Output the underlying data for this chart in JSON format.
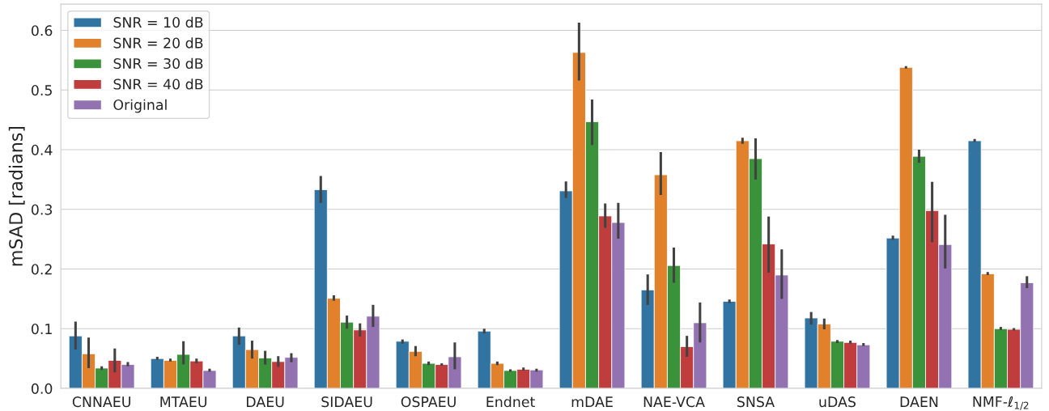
{
  "chart_data": {
    "type": "bar",
    "ylabel": "mSAD [radians]",
    "categories": [
      "CNNAEU",
      "MTAEU",
      "DAEU",
      "SIDAEU",
      "OSPAEU",
      "Endnet",
      "mDAE",
      "NAE-VCA",
      "SNSA",
      "uDAS",
      "DAEN",
      "NMF-ℓ$_{1/2}$"
    ],
    "series": [
      {
        "name": "SNR = 10 dB",
        "color": "#3274a1",
        "values": [
          0.088,
          0.05,
          0.088,
          0.333,
          0.079,
          0.096,
          0.331,
          0.165,
          0.146,
          0.118,
          0.252,
          0.415
        ],
        "errors": [
          [
            0.065,
            0.112
          ],
          [
            0.048,
            0.053
          ],
          [
            0.073,
            0.102
          ],
          [
            0.311,
            0.356
          ],
          [
            0.075,
            0.082
          ],
          [
            0.092,
            0.1
          ],
          [
            0.319,
            0.347
          ],
          [
            0.14,
            0.191
          ],
          [
            0.143,
            0.149
          ],
          [
            0.107,
            0.128
          ],
          [
            0.249,
            0.256
          ],
          [
            0.413,
            0.418
          ]
        ]
      },
      {
        "name": "SNR = 20 dB",
        "color": "#e1812c",
        "values": [
          0.058,
          0.047,
          0.065,
          0.151,
          0.062,
          0.042,
          0.563,
          0.358,
          0.415,
          0.108,
          0.538,
          0.192
        ],
        "errors": [
          [
            0.034,
            0.085
          ],
          [
            0.045,
            0.05
          ],
          [
            0.05,
            0.08
          ],
          [
            0.147,
            0.156
          ],
          [
            0.054,
            0.071
          ],
          [
            0.039,
            0.045
          ],
          [
            0.516,
            0.613
          ],
          [
            0.324,
            0.396
          ],
          [
            0.41,
            0.42
          ],
          [
            0.099,
            0.117
          ],
          [
            0.536,
            0.54
          ],
          [
            0.19,
            0.195
          ]
        ]
      },
      {
        "name": "SNR = 30 dB",
        "color": "#3a923a",
        "values": [
          0.034,
          0.057,
          0.051,
          0.111,
          0.042,
          0.03,
          0.447,
          0.206,
          0.385,
          0.079,
          0.389,
          0.1
        ],
        "errors": [
          [
            0.031,
            0.037
          ],
          [
            0.04,
            0.079
          ],
          [
            0.04,
            0.063
          ],
          [
            0.1,
            0.122
          ],
          [
            0.039,
            0.045
          ],
          [
            0.028,
            0.032
          ],
          [
            0.408,
            0.484
          ],
          [
            0.177,
            0.236
          ],
          [
            0.35,
            0.419
          ],
          [
            0.076,
            0.081
          ],
          [
            0.378,
            0.4
          ],
          [
            0.098,
            0.103
          ]
        ]
      },
      {
        "name": "SNR = 40 dB",
        "color": "#c03d3e",
        "values": [
          0.047,
          0.046,
          0.045,
          0.098,
          0.04,
          0.032,
          0.289,
          0.07,
          0.242,
          0.077,
          0.298,
          0.099
        ],
        "errors": [
          [
            0.027,
            0.067
          ],
          [
            0.042,
            0.05
          ],
          [
            0.036,
            0.054
          ],
          [
            0.087,
            0.109
          ],
          [
            0.038,
            0.042
          ],
          [
            0.03,
            0.035
          ],
          [
            0.269,
            0.31
          ],
          [
            0.053,
            0.088
          ],
          [
            0.194,
            0.288
          ],
          [
            0.075,
            0.08
          ],
          [
            0.245,
            0.346
          ],
          [
            0.097,
            0.101
          ]
        ]
      },
      {
        "name": "Original",
        "color": "#9372b2",
        "values": [
          0.04,
          0.03,
          0.052,
          0.121,
          0.053,
          0.031,
          0.278,
          0.11,
          0.19,
          0.073,
          0.241,
          0.177
        ],
        "errors": [
          [
            0.037,
            0.044
          ],
          [
            0.028,
            0.033
          ],
          [
            0.044,
            0.059
          ],
          [
            0.103,
            0.14
          ],
          [
            0.032,
            0.077
          ],
          [
            0.028,
            0.033
          ],
          [
            0.251,
            0.311
          ],
          [
            0.077,
            0.144
          ],
          [
            0.15,
            0.233
          ],
          [
            0.071,
            0.076
          ],
          [
            0.201,
            0.291
          ],
          [
            0.168,
            0.188
          ]
        ]
      }
    ],
    "ylim": [
      0,
      0.644
    ],
    "yticks": [
      {
        "value": 0,
        "label": "0.0"
      },
      0.1,
      0.2,
      0.3,
      0.4,
      0.5,
      0.6
    ],
    "grid": "y",
    "legend": "top left"
  }
}
